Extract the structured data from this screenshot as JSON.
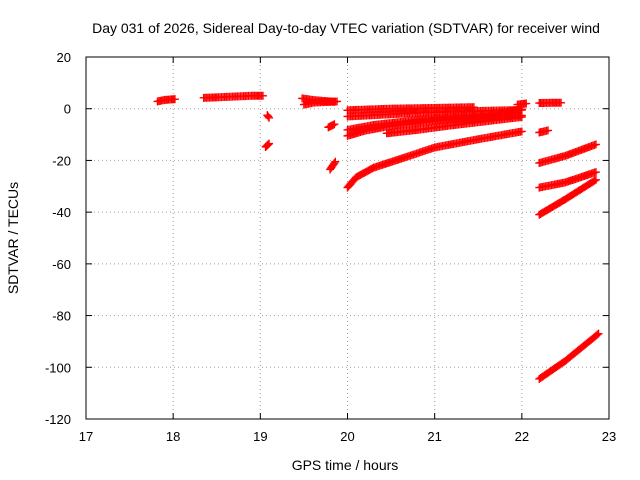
{
  "chart_data": {
    "type": "scatter",
    "title": "Day 031 of 2026, Sidereal Day-to-day VTEC variation (SDTVAR) for receiver wind",
    "xlabel": "GPS time / hours",
    "ylabel": "SDTVAR / TECUs",
    "xlim": [
      17,
      23
    ],
    "ylim": [
      -120,
      20
    ],
    "xticks": [
      17,
      18,
      19,
      20,
      21,
      22,
      23
    ],
    "yticks": [
      -120,
      -100,
      -80,
      -60,
      -40,
      -20,
      0,
      20
    ],
    "grid": true,
    "marker": "plus",
    "color": "#ff0000",
    "series": [
      {
        "values": [
          [
            17.82,
            2.8
          ],
          [
            17.9,
            3.4
          ],
          [
            17.98,
            3.6
          ],
          [
            18.02,
            3.7
          ]
        ]
      },
      {
        "values": [
          [
            18.35,
            4.2
          ],
          [
            18.5,
            4.4
          ],
          [
            18.7,
            4.7
          ],
          [
            18.9,
            5.0
          ],
          [
            19.03,
            5.0
          ]
        ]
      },
      {
        "values": [
          [
            19.08,
            -2.5
          ],
          [
            19.1,
            -3.5
          ]
        ]
      },
      {
        "values": [
          [
            19.06,
            -14.8
          ],
          [
            19.1,
            -13.5
          ]
        ]
      },
      {
        "values": [
          [
            19.48,
            4.0
          ],
          [
            19.6,
            3.4
          ],
          [
            19.72,
            3.0
          ],
          [
            19.85,
            2.7
          ]
        ]
      },
      {
        "values": [
          [
            19.5,
            1.6
          ],
          [
            19.62,
            2.4
          ],
          [
            19.76,
            2.6
          ],
          [
            19.88,
            2.8
          ]
        ]
      },
      {
        "values": [
          [
            19.78,
            -7.2
          ],
          [
            19.85,
            -6.0
          ]
        ]
      },
      {
        "values": [
          [
            19.8,
            -23.5
          ],
          [
            19.86,
            -20.5
          ]
        ]
      },
      {
        "values": [
          [
            20.0,
            -30.5
          ],
          [
            20.1,
            -26.5
          ],
          [
            20.3,
            -22.8
          ],
          [
            20.6,
            -19.5
          ],
          [
            21.0,
            -15.0
          ],
          [
            21.5,
            -11.8
          ],
          [
            22.0,
            -8.8
          ]
        ]
      },
      {
        "values": [
          [
            20.0,
            -10.5
          ],
          [
            20.2,
            -8.5
          ],
          [
            20.5,
            -6.6
          ],
          [
            20.8,
            -5.3
          ],
          [
            21.1,
            -4.3
          ],
          [
            21.5,
            -3.5
          ],
          [
            22.0,
            -2.6
          ]
        ]
      },
      {
        "values": [
          [
            20.0,
            -8.2
          ],
          [
            20.3,
            -6.3
          ],
          [
            20.7,
            -4.8
          ],
          [
            21.0,
            -3.7
          ],
          [
            21.4,
            -2.7
          ],
          [
            21.8,
            -1.4
          ],
          [
            22.0,
            -0.2
          ]
        ]
      },
      {
        "values": [
          [
            20.0,
            -0.6
          ],
          [
            20.5,
            0.0
          ],
          [
            21.0,
            0.3
          ],
          [
            21.45,
            0.6
          ]
        ]
      },
      {
        "values": [
          [
            20.45,
            -9.5
          ],
          [
            20.8,
            -8.2
          ],
          [
            21.2,
            -6.4
          ],
          [
            21.6,
            -4.8
          ],
          [
            22.0,
            -3.2
          ]
        ]
      },
      {
        "values": [
          [
            20.0,
            -3.0
          ],
          [
            20.4,
            -2.3
          ],
          [
            20.8,
            -1.6
          ],
          [
            21.2,
            -1.2
          ],
          [
            21.6,
            -0.8
          ],
          [
            22.0,
            -0.5
          ]
        ]
      },
      {
        "values": [
          [
            21.95,
            1.6
          ],
          [
            22.05,
            2.0
          ]
        ]
      },
      {
        "values": [
          [
            22.2,
            2.2
          ],
          [
            22.35,
            2.3
          ],
          [
            22.45,
            2.3
          ]
        ]
      },
      {
        "values": [
          [
            22.2,
            -9.2
          ],
          [
            22.3,
            -8.4
          ]
        ]
      },
      {
        "values": [
          [
            22.2,
            -21.0
          ],
          [
            22.5,
            -18.2
          ],
          [
            22.85,
            -13.8
          ]
        ]
      },
      {
        "values": [
          [
            22.2,
            -30.5
          ],
          [
            22.5,
            -28.5
          ],
          [
            22.85,
            -24.5
          ]
        ]
      },
      {
        "values": [
          [
            22.2,
            -41.0
          ],
          [
            22.5,
            -35.0
          ],
          [
            22.85,
            -27.5
          ]
        ]
      },
      {
        "values": [
          [
            22.2,
            -104.5
          ],
          [
            22.5,
            -97.5
          ],
          [
            22.88,
            -87.0
          ]
        ]
      }
    ]
  }
}
